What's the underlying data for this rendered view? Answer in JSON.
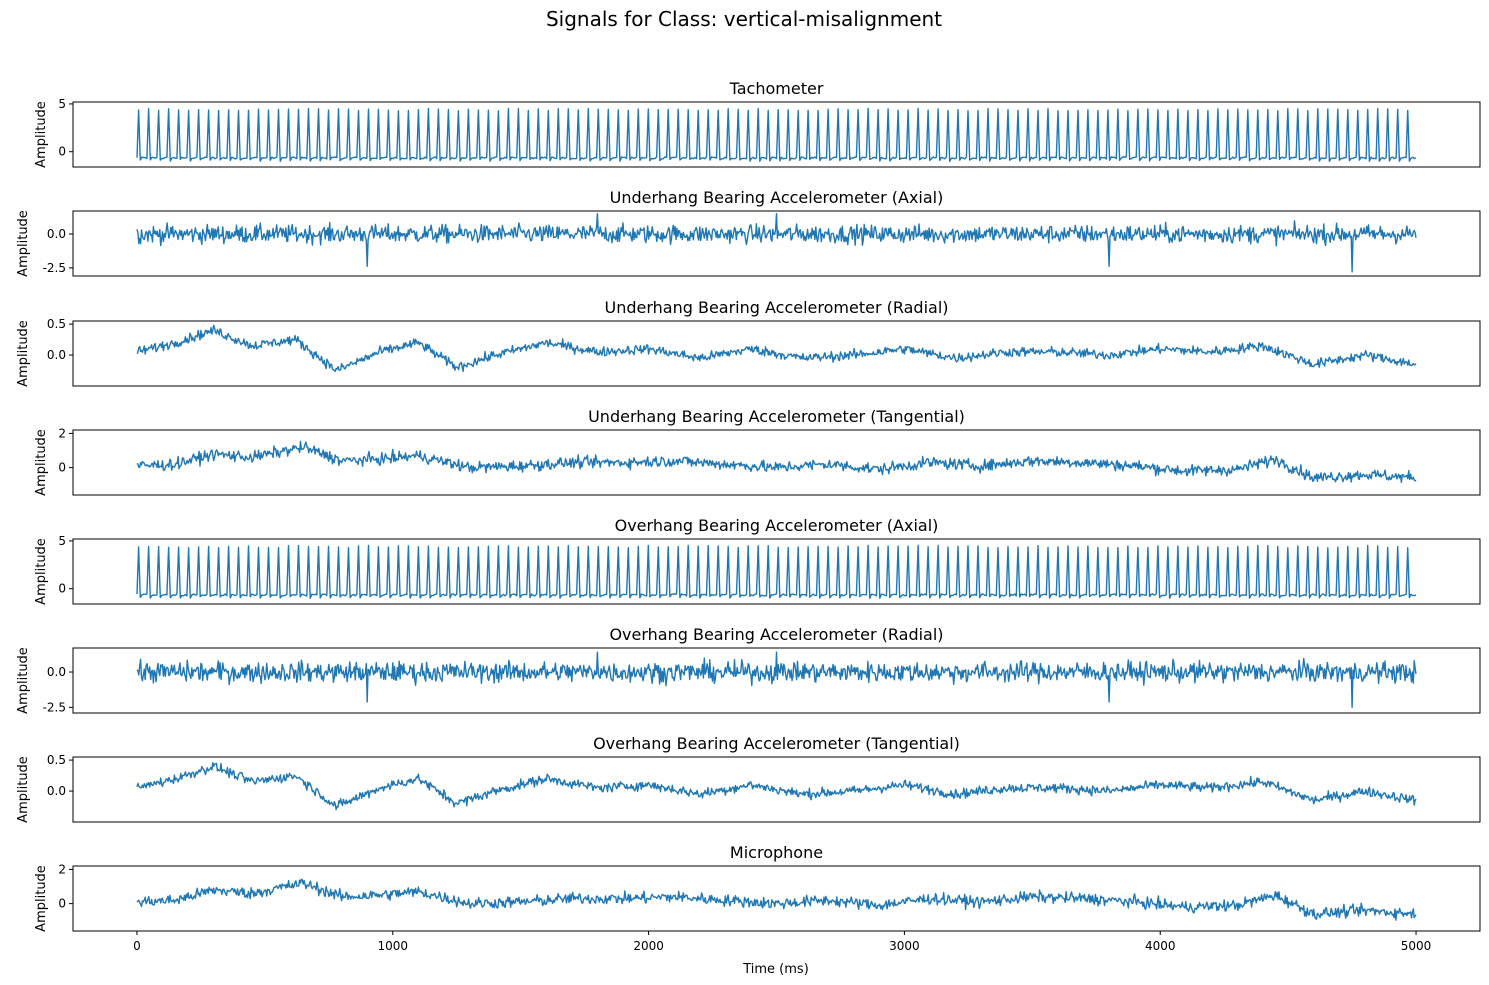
{
  "figure": {
    "title": "Signals for Class: vertical-misalignment",
    "line_color": "#1f77b4"
  },
  "chart_data": {
    "type": "line",
    "xlabel": "Time (ms)",
    "xlim": [
      -250,
      5250
    ],
    "x_range": [
      0,
      5000
    ],
    "xticks": [
      "0",
      "1000",
      "2000",
      "3000",
      "4000",
      "5000"
    ],
    "grid": false,
    "legend": "none",
    "panels": [
      {
        "title": "Tachometer",
        "ylabel": "Amplitude",
        "ylim": [
          -1.6,
          5.2
        ],
        "yticks": [
          "5",
          "0"
        ],
        "pattern": "pulse",
        "baseline": -0.65,
        "peak": 4.4,
        "pulse_count": 128
      },
      {
        "title": "Underhang Bearing Accelerometer (Axial)",
        "ylabel": "Amplitude",
        "ylim": [
          -3.1,
          1.7
        ],
        "yticks": [
          "0.0",
          "-2.5"
        ],
        "pattern": "noise",
        "centre": 0.0,
        "noise_amplitude": 0.6,
        "min": -2.8,
        "max": 1.5
      },
      {
        "title": "Underhang Bearing Accelerometer (Radial)",
        "ylabel": "Amplitude",
        "ylim": [
          -0.5,
          0.55
        ],
        "yticks": [
          "0.5",
          "0.0"
        ],
        "pattern": "drift",
        "noise_amplitude": 0.07,
        "trend_x": [
          0,
          150,
          300,
          450,
          620,
          780,
          950,
          1100,
          1250,
          1400,
          1600,
          1800,
          2000,
          2200,
          2400,
          2600,
          2800,
          3000,
          3200,
          3400,
          3600,
          3800,
          4000,
          4200,
          4400,
          4600,
          4800,
          5000
        ],
        "trend_y": [
          0.05,
          0.2,
          0.4,
          0.15,
          0.25,
          -0.25,
          0.05,
          0.2,
          -0.2,
          0.0,
          0.2,
          0.05,
          0.1,
          -0.05,
          0.1,
          -0.05,
          0.0,
          0.1,
          -0.05,
          0.05,
          0.05,
          0.0,
          0.1,
          0.05,
          0.15,
          -0.15,
          0.0,
          -0.15
        ]
      },
      {
        "title": "Underhang Bearing Accelerometer (Tangential)",
        "ylabel": "Amplitude",
        "ylim": [
          -1.6,
          2.2
        ],
        "yticks": [
          "2",
          "0"
        ],
        "pattern": "drift",
        "noise_amplitude": 0.3,
        "trend_x": [
          0,
          150,
          300,
          450,
          650,
          800,
          950,
          1100,
          1300,
          1500,
          1700,
          1900,
          2100,
          2300,
          2500,
          2700,
          2900,
          3100,
          3300,
          3500,
          3700,
          3900,
          4100,
          4300,
          4450,
          4600,
          4800,
          5000
        ],
        "trend_y": [
          0.1,
          0.2,
          0.8,
          0.6,
          1.2,
          0.4,
          0.5,
          0.7,
          0.0,
          0.1,
          0.3,
          0.3,
          0.4,
          0.2,
          0.0,
          0.2,
          -0.1,
          0.3,
          0.1,
          0.4,
          0.3,
          0.1,
          -0.2,
          -0.1,
          0.5,
          -0.6,
          -0.4,
          -0.6
        ]
      },
      {
        "title": "Overhang Bearing Accelerometer (Axial)",
        "ylabel": "Amplitude",
        "ylim": [
          -1.6,
          5.2
        ],
        "yticks": [
          "5",
          "0"
        ],
        "pattern": "pulse",
        "baseline": -0.65,
        "peak": 4.4,
        "pulse_count": 128
      },
      {
        "title": "Overhang Bearing Accelerometer (Radial)",
        "ylabel": "Amplitude",
        "ylim": [
          -2.9,
          1.7
        ],
        "yticks": [
          "0.0",
          "-2.5"
        ],
        "pattern": "noise",
        "centre": 0.0,
        "noise_amplitude": 0.65,
        "min": -2.5,
        "max": 1.4
      },
      {
        "title": "Overhang Bearing Accelerometer (Tangential)",
        "ylabel": "Amplitude",
        "ylim": [
          -0.5,
          0.55
        ],
        "yticks": [
          "0.5",
          "0.0"
        ],
        "pattern": "drift",
        "noise_amplitude": 0.07,
        "trend_x": [
          0,
          150,
          300,
          450,
          620,
          780,
          950,
          1100,
          1250,
          1400,
          1600,
          1800,
          2000,
          2200,
          2400,
          2600,
          2800,
          3000,
          3200,
          3400,
          3600,
          3800,
          4000,
          4200,
          4400,
          4600,
          4800,
          5000
        ],
        "trend_y": [
          0.05,
          0.2,
          0.4,
          0.15,
          0.25,
          -0.25,
          0.05,
          0.2,
          -0.2,
          0.0,
          0.2,
          0.05,
          0.1,
          -0.05,
          0.1,
          -0.05,
          0.0,
          0.1,
          -0.05,
          0.05,
          0.05,
          0.0,
          0.1,
          0.05,
          0.15,
          -0.15,
          0.0,
          -0.15
        ]
      },
      {
        "title": "Microphone",
        "ylabel": "Amplitude",
        "ylim": [
          -1.6,
          2.2
        ],
        "yticks": [
          "2",
          "0"
        ],
        "pattern": "drift",
        "noise_amplitude": 0.3,
        "trend_x": [
          0,
          150,
          300,
          450,
          650,
          800,
          950,
          1100,
          1300,
          1500,
          1700,
          1900,
          2100,
          2300,
          2500,
          2700,
          2900,
          3100,
          3300,
          3500,
          3700,
          3900,
          4100,
          4300,
          4450,
          4600,
          4800,
          5000
        ],
        "trend_y": [
          0.1,
          0.2,
          0.8,
          0.6,
          1.2,
          0.4,
          0.5,
          0.7,
          0.0,
          0.1,
          0.3,
          0.3,
          0.4,
          0.2,
          0.0,
          0.2,
          -0.1,
          0.3,
          0.1,
          0.4,
          0.3,
          0.1,
          -0.2,
          -0.1,
          0.5,
          -0.6,
          -0.4,
          -0.6
        ]
      }
    ]
  }
}
